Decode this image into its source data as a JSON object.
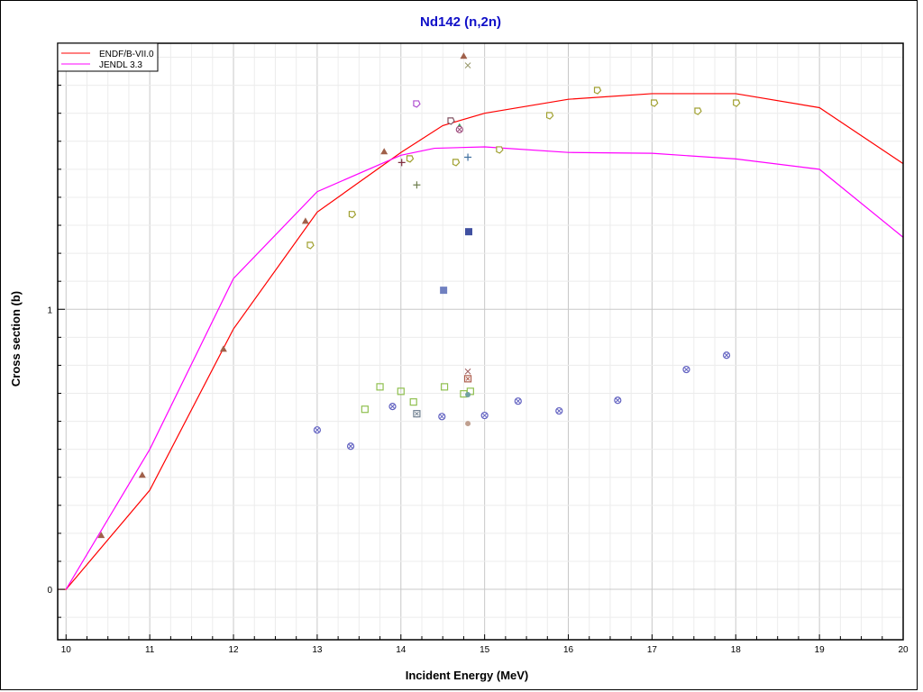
{
  "chart_data": {
    "type": "line",
    "title": "Nd142 (n,2n)",
    "xlabel": "Incident Energy (MeV)",
    "ylabel": "Cross section (b)",
    "xlim": [
      9.9,
      20
    ],
    "ylim": [
      -0.18,
      1.95
    ],
    "x_ticks": [
      "10",
      "11",
      "12",
      "13",
      "14",
      "15",
      "16",
      "17",
      "18",
      "19",
      "20"
    ],
    "y_ticks": [
      "0",
      "1"
    ],
    "grid": true,
    "legend_position": "top-left",
    "series": [
      {
        "name": "ENDF/B-VII.0",
        "color": "#ff0000",
        "x": [
          10,
          11,
          12,
          13,
          14,
          14.5,
          15,
          16,
          17,
          18,
          19,
          20
        ],
        "y": [
          0,
          0.354,
          0.93,
          1.347,
          1.56,
          1.656,
          1.7,
          1.75,
          1.77,
          1.77,
          1.72,
          1.52
        ]
      },
      {
        "name": "JENDL 3.3",
        "color": "#ff00ff",
        "x": [
          10,
          11,
          12,
          13,
          14,
          14.4,
          15,
          16,
          17,
          18,
          19,
          20
        ],
        "y": [
          0,
          0.5,
          1.11,
          1.42,
          1.55,
          1.575,
          1.58,
          1.56,
          1.557,
          1.537,
          1.5,
          1.257
        ]
      }
    ],
    "experimental": [
      {
        "marker": "triangle",
        "color": "#a0604a",
        "points": [
          [
            10.42,
            0.193
          ],
          [
            10.91,
            0.408
          ],
          [
            11.88,
            0.858
          ],
          [
            12.86,
            1.315
          ],
          [
            13.8,
            1.563
          ],
          [
            14.75,
            1.904
          ]
        ]
      },
      {
        "marker": "pentagon",
        "color": "#a0a030",
        "points": [
          [
            12.92,
            1.228
          ],
          [
            13.42,
            1.338
          ],
          [
            14.11,
            1.537
          ],
          [
            14.66,
            1.524
          ],
          [
            15.18,
            1.569
          ],
          [
            15.78,
            1.691
          ],
          [
            16.35,
            1.781
          ],
          [
            17.03,
            1.736
          ],
          [
            17.55,
            1.707
          ],
          [
            18.01,
            1.736
          ]
        ]
      },
      {
        "marker": "square",
        "color": "#90c050",
        "points": [
          [
            13.75,
            0.723
          ],
          [
            13.57,
            0.643
          ],
          [
            14.0,
            0.707
          ],
          [
            14.15,
            0.669
          ],
          [
            14.52,
            0.723
          ],
          [
            14.75,
            0.698
          ],
          [
            14.83,
            0.707
          ]
        ]
      },
      {
        "marker": "circlex",
        "color": "#6060c0",
        "points": [
          [
            13.0,
            0.569
          ],
          [
            13.4,
            0.511
          ],
          [
            13.9,
            0.653
          ],
          [
            14.19,
            0.627
          ],
          [
            14.49,
            0.617
          ],
          [
            15.0,
            0.621
          ],
          [
            15.4,
            0.672
          ],
          [
            15.89,
            0.637
          ],
          [
            16.59,
            0.675
          ],
          [
            17.41,
            0.785
          ],
          [
            17.89,
            0.836
          ]
        ]
      },
      {
        "marker": "squarex",
        "color": "#b06050",
        "points": [
          [
            14.8,
            0.752
          ]
        ]
      },
      {
        "marker": "squarex",
        "color": "#708090",
        "points": [
          [
            14.19,
            0.627
          ]
        ]
      },
      {
        "marker": "x",
        "color": "#a06060",
        "points": [
          [
            14.8,
            0.778
          ]
        ]
      },
      {
        "marker": "x",
        "color": "#909060",
        "points": [
          [
            14.8,
            1.871
          ]
        ]
      },
      {
        "marker": "dot",
        "color": "#70a0a0",
        "points": [
          [
            14.8,
            0.695
          ]
        ]
      },
      {
        "marker": "dot",
        "color": "#c0a090",
        "points": [
          [
            14.8,
            0.592
          ]
        ]
      },
      {
        "marker": "filledsquare",
        "color": "#4050a0",
        "points": [
          [
            14.81,
            1.277
          ]
        ]
      },
      {
        "marker": "filledsquare",
        "color": "#7080c0",
        "points": [
          [
            14.51,
            1.068
          ]
        ]
      },
      {
        "marker": "pentagon",
        "color": "#b050d0",
        "points": [
          [
            14.19,
            1.733
          ]
        ]
      },
      {
        "marker": "pentagon",
        "color": "#805060",
        "points": [
          [
            14.6,
            1.672
          ]
        ]
      },
      {
        "marker": "triangle",
        "color": "#40a060",
        "points": [
          [
            14.7,
            1.652
          ]
        ]
      },
      {
        "marker": "circlex",
        "color": "#a05080",
        "points": [
          [
            14.7,
            1.642
          ]
        ]
      },
      {
        "marker": "plus",
        "color": "#803040",
        "points": [
          [
            14.01,
            1.524
          ]
        ]
      },
      {
        "marker": "plus",
        "color": "#708050",
        "points": [
          [
            14.19,
            1.444
          ]
        ]
      },
      {
        "marker": "plus",
        "color": "#4070a0",
        "points": [
          [
            14.8,
            1.543
          ]
        ]
      }
    ]
  }
}
